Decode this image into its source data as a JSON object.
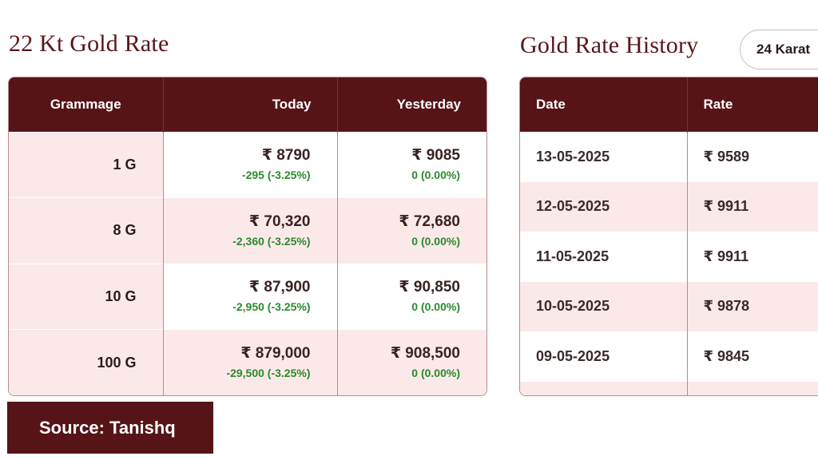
{
  "left_section": {
    "title": "22 Kt Gold Rate",
    "table": {
      "headers": {
        "grammage": "Grammage",
        "today": "Today",
        "yesterday": "Yesterday"
      },
      "rows": [
        {
          "grammage": "1 G",
          "today_price": "₹ 8790",
          "today_change": "-295 (-3.25%)",
          "yesterday_price": "₹ 9085",
          "yesterday_change": "0 (0.00%)"
        },
        {
          "grammage": "8 G",
          "today_price": "₹ 70,320",
          "today_change": "-2,360 (-3.25%)",
          "yesterday_price": "₹ 72,680",
          "yesterday_change": "0 (0.00%)"
        },
        {
          "grammage": "10 G",
          "today_price": "₹ 87,900",
          "today_change": "-2,950 (-3.25%)",
          "yesterday_price": "₹ 90,850",
          "yesterday_change": "0 (0.00%)"
        },
        {
          "grammage": "100 G",
          "today_price": "₹ 879,000",
          "today_change": "-29,500 (-3.25%)",
          "yesterday_price": "₹ 908,500",
          "yesterday_change": "0 (0.00%)"
        }
      ]
    }
  },
  "right_section": {
    "title": "Gold Rate History",
    "karat_selector": "24 Karat",
    "table": {
      "headers": {
        "date": "Date",
        "rate": "Rate"
      },
      "rows": [
        {
          "date": "13-05-2025",
          "rate": "₹ 9589"
        },
        {
          "date": "12-05-2025",
          "rate": "₹ 9911"
        },
        {
          "date": "11-05-2025",
          "rate": "₹ 9911"
        },
        {
          "date": "10-05-2025",
          "rate": "₹ 9878"
        },
        {
          "date": "09-05-2025",
          "rate": "₹ 9845"
        }
      ]
    }
  },
  "source_badge": "Source: Tanishq",
  "colors": {
    "header_bg": "#561417",
    "row_alt_bg": "#fbe9ea",
    "change_green": "#2a8a2a",
    "title": "#5a1518"
  }
}
